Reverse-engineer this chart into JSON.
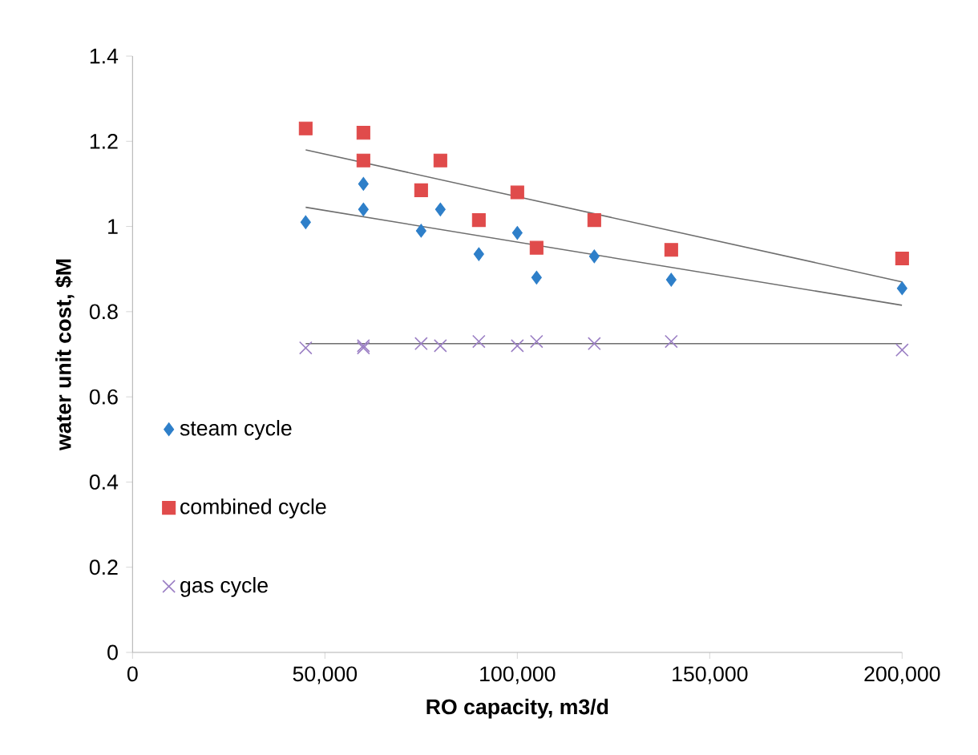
{
  "chart_data": {
    "type": "scatter",
    "xlabel": "RO capacity,  m3/d",
    "ylabel": "water unit cost, $M",
    "xlim": [
      0,
      200000
    ],
    "ylim": [
      0,
      1.4
    ],
    "xticks": [
      0,
      {
        "value": 50000,
        "label": "50,000"
      },
      {
        "value": 100000,
        "label": "100,000"
      },
      {
        "value": 150000,
        "label": "150,000"
      },
      {
        "value": 200000,
        "label": "200,000"
      }
    ],
    "yticks": [
      0,
      0.2,
      0.4,
      0.6,
      0.8,
      1,
      1.2,
      1.4
    ],
    "grid": false,
    "legend": "left",
    "series": [
      {
        "name": "steam cycle",
        "color": "#2e7fc9",
        "marker": "diamond",
        "x": [
          45000,
          60000,
          60000,
          75000,
          80000,
          90000,
          100000,
          105000,
          120000,
          140000,
          200000
        ],
        "values": [
          1.01,
          1.1,
          1.04,
          0.99,
          1.04,
          0.935,
          0.985,
          0.88,
          0.93,
          0.875,
          0.855
        ]
      },
      {
        "name": "combined cycle",
        "color": "#e04b4b",
        "marker": "square",
        "x": [
          45000,
          60000,
          60000,
          75000,
          80000,
          90000,
          100000,
          105000,
          120000,
          140000,
          200000
        ],
        "values": [
          1.23,
          1.22,
          1.155,
          1.085,
          1.155,
          1.015,
          1.08,
          0.95,
          1.015,
          0.945,
          0.925
        ]
      },
      {
        "name": "gas cycle",
        "color": "#9b7fc4",
        "marker": "cross",
        "x": [
          45000,
          60000,
          60000,
          75000,
          80000,
          90000,
          100000,
          105000,
          120000,
          140000,
          200000
        ],
        "values": [
          0.715,
          0.715,
          0.72,
          0.725,
          0.72,
          0.73,
          0.72,
          0.73,
          0.725,
          0.73,
          0.71
        ]
      },
      {
        "type": "line",
        "color": "#6e6e6e",
        "marker": "none",
        "x": [
          45000,
          200000
        ],
        "values": [
          1.045,
          0.815
        ]
      },
      {
        "type": "line",
        "color": "#6e6e6e",
        "marker": "none",
        "x": [
          45000,
          200000
        ],
        "values": [
          1.18,
          0.87
        ]
      },
      {
        "type": "line",
        "color": "#6e6e6e",
        "marker": "none",
        "x": [
          45000,
          200000
        ],
        "values": [
          0.725,
          0.725
        ]
      }
    ]
  }
}
